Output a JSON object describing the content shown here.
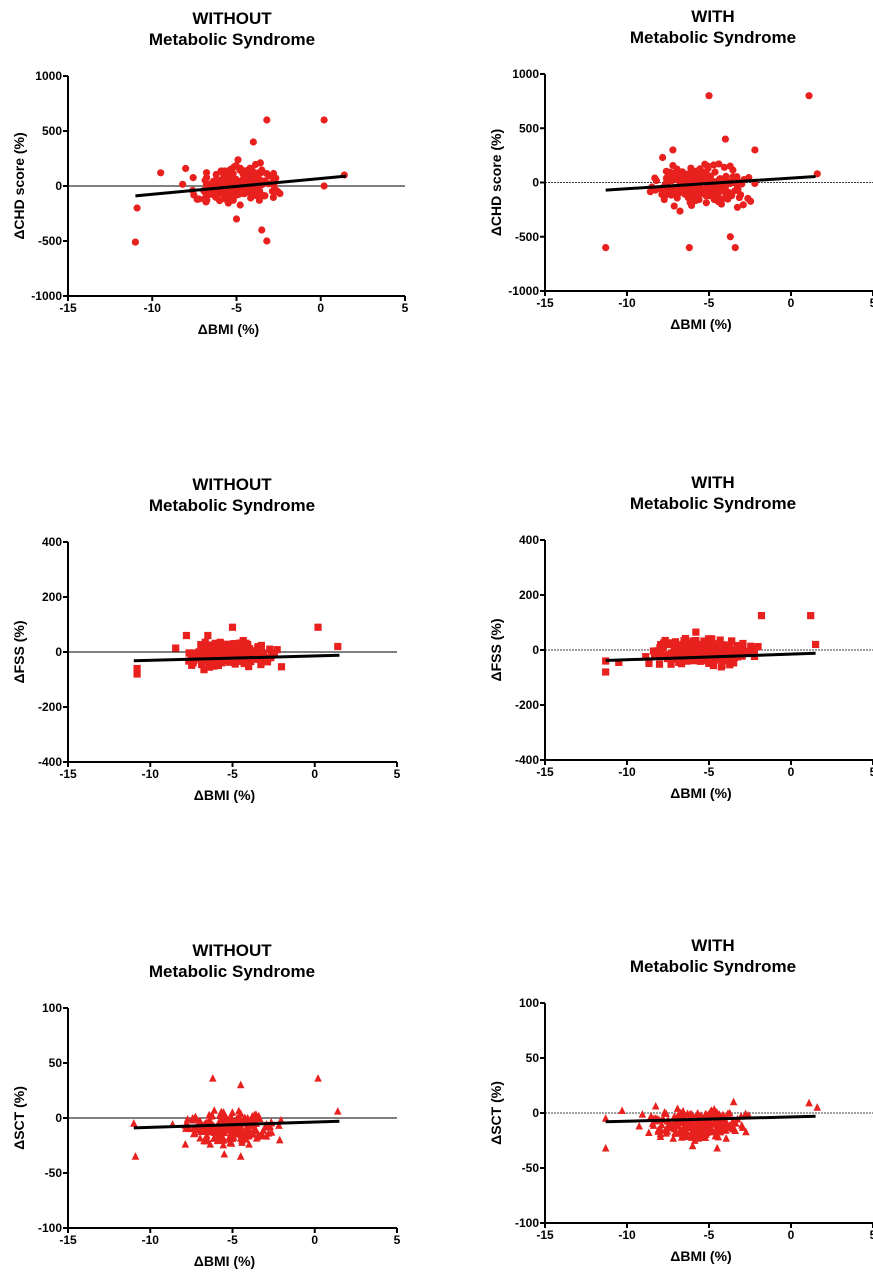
{
  "figure": {
    "marker_color": "#e8201e",
    "line_color": "#000000"
  },
  "chart_data": [
    {
      "type": "scatter",
      "title": "WITHOUT",
      "subtitle": "Metabolic Syndrome",
      "xlabel": "ΔBMI (%)",
      "ylabel": "ΔCHD score (%)",
      "xlim": [
        -15,
        5
      ],
      "ylim": [
        -1000,
        1000
      ],
      "xticks": [
        -15,
        -10,
        -5,
        0,
        5
      ],
      "yticks": [
        -1000,
        -500,
        0,
        500,
        1000
      ],
      "zero_line": "solid",
      "marker": "circle",
      "fit_line": [
        [
          -11,
          -90
        ],
        [
          1.5,
          90
        ]
      ],
      "highlighted_points": [
        [
          -11,
          -510
        ],
        [
          -10.9,
          -200
        ],
        [
          -9.5,
          120
        ],
        [
          -3.2,
          600
        ],
        [
          0.2,
          600
        ],
        [
          -3.5,
          -400
        ],
        [
          -3.2,
          -500
        ],
        [
          1.4,
          100
        ],
        [
          -4,
          400
        ],
        [
          0.2,
          0
        ],
        [
          -5,
          -300
        ]
      ],
      "cluster": {
        "x_range": [
          -8.5,
          -1.5
        ],
        "y_range": [
          -250,
          250
        ],
        "count": 220,
        "seed": 11
      }
    },
    {
      "type": "scatter",
      "title": "WITH",
      "subtitle": "Metabolic Syndrome",
      "xlabel": "ΔBMI (%)",
      "ylabel": "ΔCHD score (%)",
      "xlim": [
        -15,
        5
      ],
      "ylim": [
        -1000,
        1000
      ],
      "xticks": [
        -15,
        -10,
        -5,
        0,
        5
      ],
      "yticks": [
        -1000,
        -500,
        0,
        500,
        1000
      ],
      "zero_line": "dotted",
      "marker": "circle",
      "fit_line": [
        [
          -11.3,
          -70
        ],
        [
          1.5,
          55
        ]
      ],
      "highlighted_points": [
        [
          -11.3,
          -600
        ],
        [
          -5,
          800
        ],
        [
          1.1,
          800
        ],
        [
          -6.2,
          -600
        ],
        [
          -3.4,
          -600
        ],
        [
          -3.7,
          -500
        ],
        [
          1.6,
          80
        ],
        [
          -4,
          400
        ],
        [
          -7.2,
          300
        ],
        [
          -2.2,
          300
        ]
      ],
      "cluster": {
        "x_range": [
          -9.5,
          -1.5
        ],
        "y_range": [
          -300,
          250
        ],
        "count": 240,
        "seed": 23
      }
    },
    {
      "type": "scatter",
      "title": "WITHOUT",
      "subtitle": "Metabolic Syndrome",
      "xlabel": "ΔBMI (%)",
      "ylabel": "ΔFSS (%)",
      "xlim": [
        -15,
        5
      ],
      "ylim": [
        -400,
        400
      ],
      "xticks": [
        -15,
        -10,
        -5,
        0,
        5
      ],
      "yticks": [
        -400,
        -200,
        0,
        200,
        400
      ],
      "zero_line": "solid",
      "marker": "square",
      "fit_line": [
        [
          -11,
          -32
        ],
        [
          1.5,
          -12
        ]
      ],
      "highlighted_points": [
        [
          -10.8,
          -80
        ],
        [
          -10.8,
          -60
        ],
        [
          0.2,
          90
        ],
        [
          1.4,
          20
        ],
        [
          -5,
          90
        ],
        [
          -7.8,
          60
        ],
        [
          -6.5,
          60
        ]
      ],
      "cluster": {
        "x_range": [
          -9,
          -1.5
        ],
        "y_range": [
          -70,
          50
        ],
        "count": 260,
        "seed": 37
      }
    },
    {
      "type": "scatter",
      "title": "WITH",
      "subtitle": "Metabolic Syndrome",
      "xlabel": "ΔBMI (%)",
      "ylabel": "ΔFSS (%)",
      "xlim": [
        -15,
        5
      ],
      "ylim": [
        -400,
        400
      ],
      "xticks": [
        -15,
        -10,
        -5,
        0,
        5
      ],
      "yticks": [
        -400,
        -200,
        0,
        200,
        400
      ],
      "zero_line": "dotted",
      "marker": "square",
      "fit_line": [
        [
          -11.3,
          -38
        ],
        [
          1.5,
          -12
        ]
      ],
      "highlighted_points": [
        [
          -11.3,
          -80
        ],
        [
          -11.3,
          -40
        ],
        [
          -1.8,
          125
        ],
        [
          1.2,
          125
        ],
        [
          1.5,
          20
        ],
        [
          -10.5,
          -45
        ],
        [
          -5.8,
          65
        ]
      ],
      "cluster": {
        "x_range": [
          -9.5,
          -1.5
        ],
        "y_range": [
          -70,
          55
        ],
        "count": 280,
        "seed": 41
      }
    },
    {
      "type": "scatter",
      "title": "WITHOUT",
      "subtitle": "Metabolic Syndrome",
      "xlabel": "ΔBMI (%)",
      "ylabel": "ΔSCT (%)",
      "xlim": [
        -15,
        5
      ],
      "ylim": [
        -100,
        100
      ],
      "xticks": [
        -15,
        -10,
        -5,
        0,
        5
      ],
      "yticks": [
        -100,
        -50,
        0,
        50,
        100
      ],
      "zero_line": "solid",
      "marker": "triangle",
      "fit_line": [
        [
          -11,
          -9
        ],
        [
          1.5,
          -3
        ]
      ],
      "highlighted_points": [
        [
          -10.9,
          -35
        ],
        [
          -6.2,
          36
        ],
        [
          -4.5,
          30
        ],
        [
          0.2,
          36
        ],
        [
          1.4,
          6
        ],
        [
          -11,
          -5
        ],
        [
          -5.5,
          -33
        ],
        [
          -4.5,
          -35
        ]
      ],
      "cluster": {
        "x_range": [
          -9,
          -1.5
        ],
        "y_range": [
          -28,
          12
        ],
        "count": 230,
        "seed": 53
      }
    },
    {
      "type": "scatter",
      "title": "WITH",
      "subtitle": "Metabolic Syndrome",
      "xlabel": "ΔBMI (%)",
      "ylabel": "ΔSCT (%)",
      "xlim": [
        -15,
        5
      ],
      "ylim": [
        -100,
        100
      ],
      "xticks": [
        -15,
        -10,
        -5,
        0,
        5
      ],
      "yticks": [
        -100,
        -50,
        0,
        50,
        100
      ],
      "zero_line": "dotted",
      "marker": "triangle",
      "fit_line": [
        [
          -11.3,
          -8
        ],
        [
          1.5,
          -3
        ]
      ],
      "highlighted_points": [
        [
          -11.3,
          -32
        ],
        [
          -11.3,
          -5
        ],
        [
          -10.3,
          2
        ],
        [
          1.1,
          9
        ],
        [
          1.6,
          5
        ],
        [
          -3.5,
          10
        ],
        [
          -6,
          -30
        ],
        [
          -4.5,
          -32
        ]
      ],
      "cluster": {
        "x_range": [
          -9.5,
          -1.5
        ],
        "y_range": [
          -28,
          8
        ],
        "count": 250,
        "seed": 67
      }
    }
  ]
}
